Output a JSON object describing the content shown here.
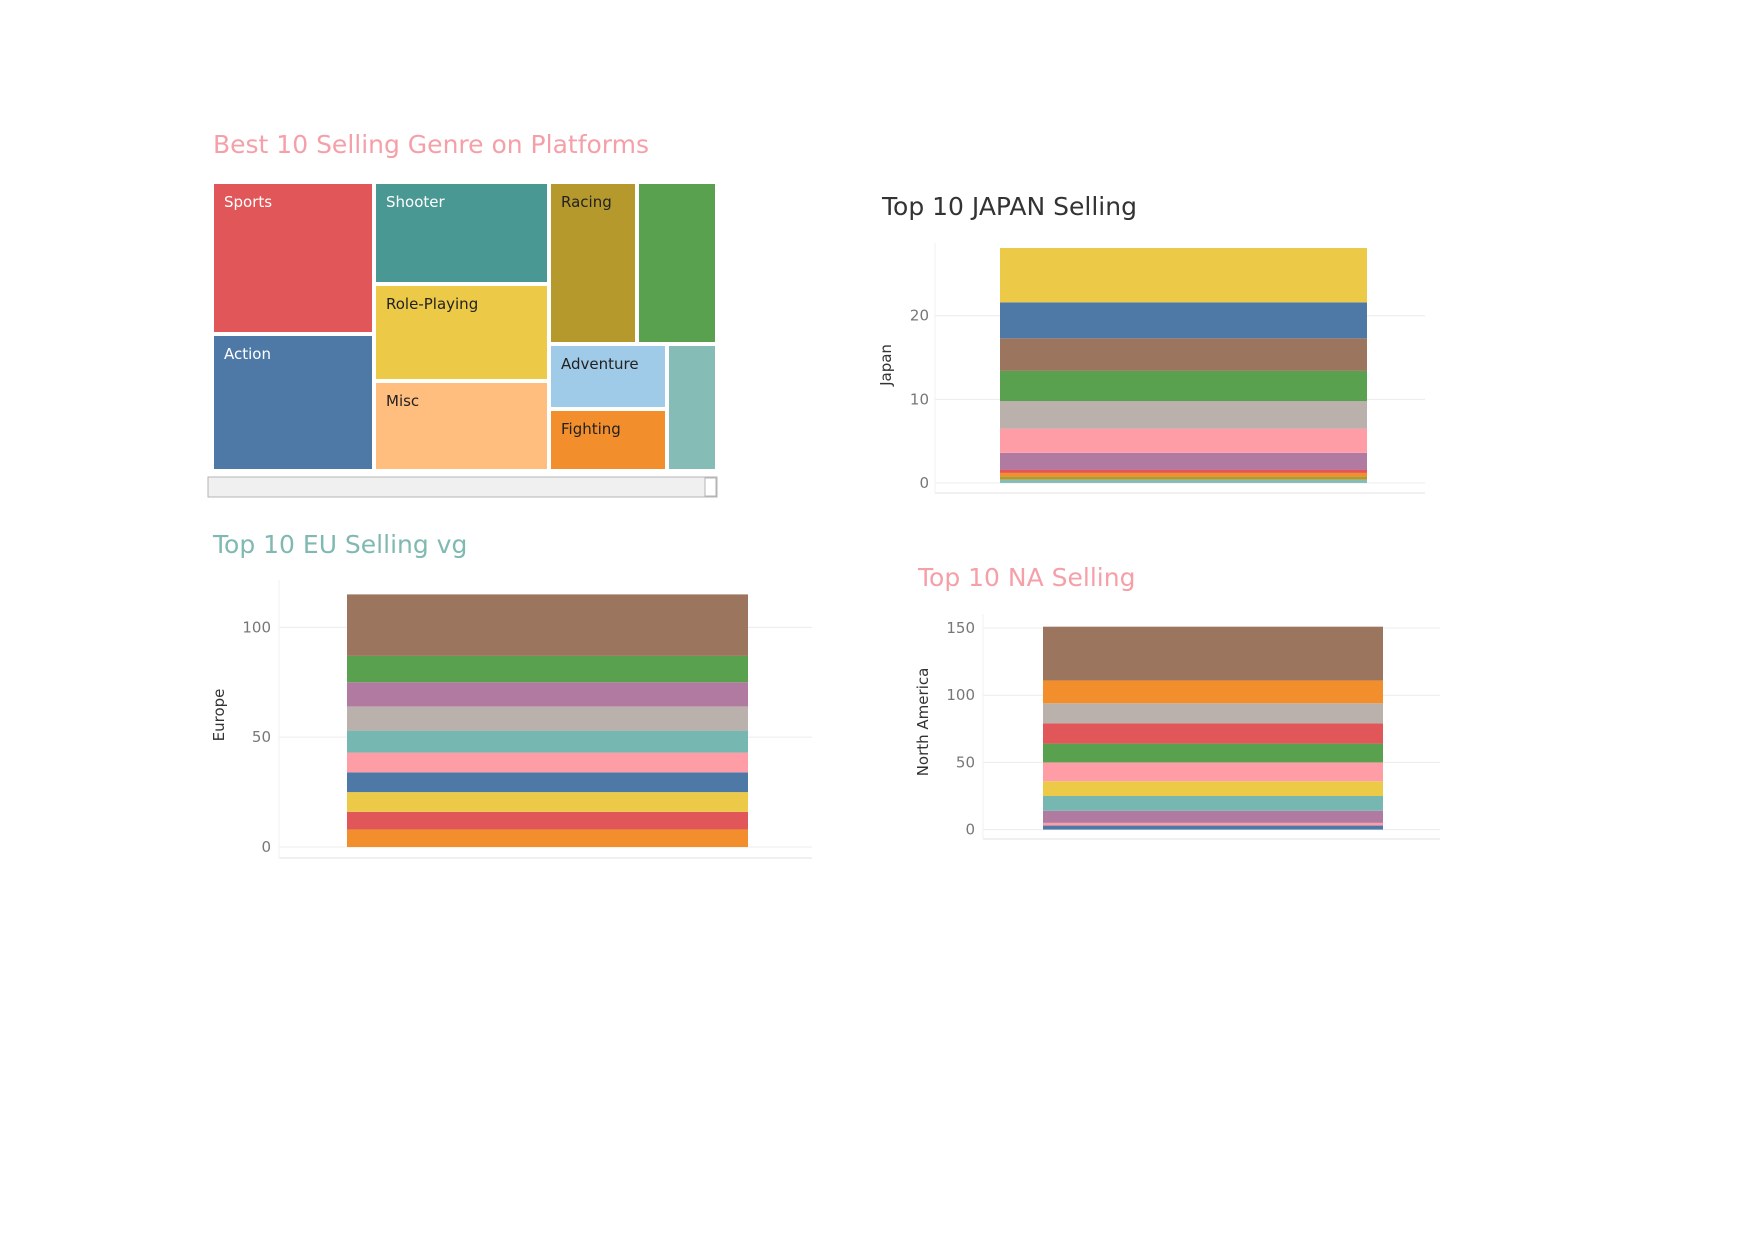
{
  "charts": {
    "treemap_title": "Best 10 Selling Genre on Platforms",
    "japan_title": "Top 10 JAPAN Selling",
    "eu_title": "Top 10 EU Selling vg",
    "na_title": "Top 10 NA Selling"
  },
  "chart_data": [
    {
      "id": "treemap",
      "type": "treemap",
      "title": "Best 10 Selling Genre on Platforms",
      "items": [
        {
          "label": "Sports",
          "color": "#e15759",
          "text_color": "#ffffff"
        },
        {
          "label": "Shooter",
          "color": "#499894",
          "text_color": "#ffffff"
        },
        {
          "label": "Racing",
          "color": "#b6992d",
          "text_color": "#222222"
        },
        {
          "label": "",
          "color": "#59a14f",
          "text_color": "#222222"
        },
        {
          "label": "Role-Playing",
          "color": "#edc948",
          "text_color": "#222222"
        },
        {
          "label": "Action",
          "color": "#4e79a7",
          "text_color": "#ffffff"
        },
        {
          "label": "Adventure",
          "color": "#a0cbe8",
          "text_color": "#222222"
        },
        {
          "label": "",
          "color": "#86bcb6",
          "text_color": "#222222"
        },
        {
          "label": "Misc",
          "color": "#ffbe7d",
          "text_color": "#222222"
        },
        {
          "label": "Fighting",
          "color": "#f28e2b",
          "text_color": "#222222"
        }
      ]
    },
    {
      "id": "japan",
      "type": "bar",
      "stacked": true,
      "title": "Top 10 JAPAN Selling",
      "ylabel": "Japan",
      "ylim": [
        -1.2,
        27.5
      ],
      "yticks": [
        0,
        10,
        20
      ],
      "segments": [
        {
          "value": 0.4,
          "color": "#86bcb6"
        },
        {
          "value": 0.4,
          "color": "#b6992d"
        },
        {
          "value": 0.4,
          "color": "#f28e2b"
        },
        {
          "value": 0.4,
          "color": "#e15759"
        },
        {
          "value": 2.0,
          "color": "#b07aa1"
        },
        {
          "value": 2.9,
          "color": "#ff9da7"
        },
        {
          "value": 3.3,
          "color": "#bab0ac"
        },
        {
          "value": 3.6,
          "color": "#59a14f"
        },
        {
          "value": 3.9,
          "color": "#9c755f"
        },
        {
          "value": 4.3,
          "color": "#4e79a7"
        },
        {
          "value": 6.5,
          "color": "#edc948"
        }
      ]
    },
    {
      "id": "eu",
      "type": "bar",
      "stacked": true,
      "title": "Top 10 EU Selling vg",
      "ylabel": "Europe",
      "ylim": [
        -5,
        117
      ],
      "yticks": [
        0,
        50,
        100
      ],
      "segments": [
        {
          "value": 8,
          "color": "#f28e2b"
        },
        {
          "value": 8,
          "color": "#e15759"
        },
        {
          "value": 9,
          "color": "#edc948"
        },
        {
          "value": 9,
          "color": "#4e79a7"
        },
        {
          "value": 9,
          "color": "#ff9da7"
        },
        {
          "value": 10,
          "color": "#76b7b2"
        },
        {
          "value": 11,
          "color": "#bab0ac"
        },
        {
          "value": 11,
          "color": "#b07aa1"
        },
        {
          "value": 12,
          "color": "#59a14f"
        },
        {
          "value": 28,
          "color": "#9c755f"
        }
      ]
    },
    {
      "id": "na",
      "type": "bar",
      "stacked": true,
      "title": "Top 10 NA Selling",
      "ylabel": "North America",
      "ylim": [
        -7,
        153
      ],
      "yticks": [
        0,
        50,
        100,
        150
      ],
      "segments": [
        {
          "value": 3,
          "color": "#4e79a7"
        },
        {
          "value": 2,
          "color": "#ff9da7"
        },
        {
          "value": 9,
          "color": "#b07aa1"
        },
        {
          "value": 11,
          "color": "#76b7b2"
        },
        {
          "value": 11,
          "color": "#edc948"
        },
        {
          "value": 14,
          "color": "#ff9da7"
        },
        {
          "value": 14,
          "color": "#59a14f"
        },
        {
          "value": 15,
          "color": "#e15759"
        },
        {
          "value": 15,
          "color": "#bab0ac"
        },
        {
          "value": 17,
          "color": "#f28e2b"
        },
        {
          "value": 40,
          "color": "#9c755f"
        }
      ]
    }
  ]
}
